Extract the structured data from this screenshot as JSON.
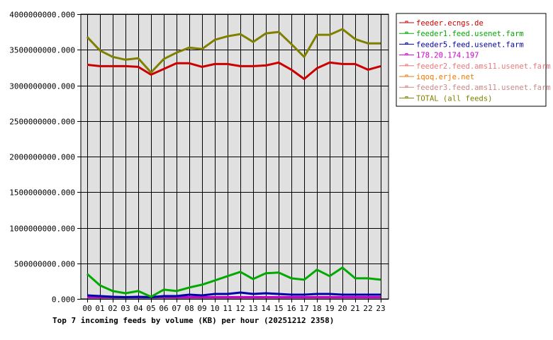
{
  "chart_data": {
    "type": "line",
    "title": "Top 7 incoming feeds by volume (KB) per hour (20251212 2358)",
    "xlabel": "",
    "ylabel": "",
    "ylim": [
      0,
      4000000000
    ],
    "grid": true,
    "legend_position": "right",
    "x": [
      "00",
      "01",
      "02",
      "03",
      "04",
      "05",
      "06",
      "07",
      "08",
      "09",
      "10",
      "11",
      "12",
      "13",
      "14",
      "15",
      "16",
      "17",
      "18",
      "19",
      "20",
      "21",
      "22",
      "23"
    ],
    "y_ticks": [
      "0.000",
      "500000000.000",
      "1000000000.000",
      "1500000000.000",
      "2000000000.000",
      "2500000000.000",
      "3000000000.000",
      "3500000000.000",
      "4000000000.000"
    ],
    "series": [
      {
        "name": "feeder.ecngs.de",
        "color": "#cc0000",
        "values": [
          3290000000,
          3270000000,
          3270000000,
          3270000000,
          3260000000,
          3150000000,
          3230000000,
          3310000000,
          3310000000,
          3260000000,
          3300000000,
          3300000000,
          3270000000,
          3270000000,
          3280000000,
          3320000000,
          3220000000,
          3090000000,
          3240000000,
          3320000000,
          3300000000,
          3300000000,
          3220000000,
          3270000000
        ]
      },
      {
        "name": "feeder1.feed.usenet.farm",
        "color": "#00aa00",
        "values": [
          350000000,
          190000000,
          110000000,
          80000000,
          110000000,
          30000000,
          130000000,
          110000000,
          160000000,
          200000000,
          260000000,
          320000000,
          380000000,
          280000000,
          360000000,
          370000000,
          290000000,
          270000000,
          410000000,
          320000000,
          440000000,
          290000000,
          290000000,
          270000000
        ]
      },
      {
        "name": "feeder5.feed.usenet.farm",
        "color": "#0000aa",
        "values": [
          50000000,
          40000000,
          30000000,
          25000000,
          30000000,
          25000000,
          40000000,
          40000000,
          60000000,
          50000000,
          70000000,
          70000000,
          90000000,
          70000000,
          80000000,
          70000000,
          60000000,
          60000000,
          70000000,
          70000000,
          60000000,
          60000000,
          60000000,
          60000000
        ]
      },
      {
        "name": "178.20.174.197",
        "color": "#cc00cc",
        "values": [
          0,
          0,
          0,
          0,
          0,
          0,
          0,
          0,
          0,
          0,
          0,
          0,
          0,
          0,
          0,
          0,
          0,
          0,
          0,
          0,
          0,
          0,
          20000000,
          20000000
        ]
      },
      {
        "name": "feeder2.feed.ams11.usenet.farm",
        "color": "#ee7777",
        "values": [
          5000000,
          5000000,
          5000000,
          5000000,
          5000000,
          5000000,
          5000000,
          5000000,
          5000000,
          5000000,
          5000000,
          5000000,
          5000000,
          5000000,
          5000000,
          5000000,
          5000000,
          5000000,
          5000000,
          5000000,
          5000000,
          5000000,
          5000000,
          5000000
        ]
      },
      {
        "name": "iqoq.erje.net",
        "color": "#ee7700",
        "values": [
          10000000,
          10000000,
          10000000,
          10000000,
          10000000,
          10000000,
          10000000,
          10000000,
          10000000,
          10000000,
          10000000,
          10000000,
          10000000,
          10000000,
          10000000,
          10000000,
          10000000,
          10000000,
          10000000,
          10000000,
          0,
          0,
          0,
          0
        ]
      },
      {
        "name": "feeder3.feed.ams11.usenet.farm",
        "color": "#cc8888",
        "values": [
          0,
          0,
          0,
          0,
          0,
          0,
          0,
          0,
          0,
          0,
          0,
          0,
          0,
          0,
          0,
          0,
          0,
          0,
          0,
          0,
          8000000,
          8000000,
          8000000,
          8000000
        ]
      },
      {
        "name": "TOTAL (all feeds)",
        "color": "#808000",
        "values": [
          3680000000,
          3490000000,
          3400000000,
          3360000000,
          3380000000,
          3180000000,
          3370000000,
          3460000000,
          3530000000,
          3510000000,
          3640000000,
          3690000000,
          3720000000,
          3610000000,
          3730000000,
          3750000000,
          3580000000,
          3400000000,
          3710000000,
          3710000000,
          3790000000,
          3650000000,
          3590000000,
          3590000000
        ]
      }
    ]
  },
  "colors": {
    "plot_background": "#e0e0e0",
    "grid": "#000000",
    "page_background": "#ffffff"
  }
}
